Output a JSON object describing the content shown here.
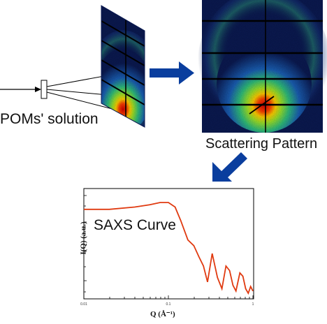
{
  "labels": {
    "solution": "POMs' solution",
    "pattern": "Scattering Pattern",
    "curve": "SAXS Curve"
  },
  "chart_data": {
    "type": "line",
    "xlabel": "Q (Å⁻¹)",
    "ylabel": "I(Q) (a.u.)",
    "x_scale": "log",
    "y_scale": "log",
    "xlim": [
      0.01,
      1
    ],
    "x_tick_labels": [
      "0.01",
      "0.1",
      "1"
    ],
    "grid": false,
    "series": [
      {
        "x": [
          0.01,
          0.02,
          0.04,
          0.06,
          0.08,
          0.1,
          0.12,
          0.14,
          0.17,
          0.2,
          0.23,
          0.26,
          0.29,
          0.33,
          0.38,
          0.43,
          0.48,
          0.53,
          0.58,
          0.63,
          0.7,
          0.76,
          0.82,
          0.88,
          0.94,
          1.0
        ],
        "y": [
          0.72,
          0.72,
          0.74,
          0.76,
          0.78,
          0.78,
          0.74,
          0.62,
          0.45,
          0.4,
          0.3,
          0.22,
          0.08,
          0.33,
          0.12,
          0.02,
          0.22,
          0.18,
          0.05,
          0.0,
          0.16,
          0.13,
          0.02,
          -0.02,
          0.04,
          0.0
        ]
      }
    ],
    "line_color": "#e03a10"
  },
  "colors": {
    "arrow": "#0a3e9e",
    "curve": "#e03a10",
    "detector_bg": "#0b1a52"
  }
}
